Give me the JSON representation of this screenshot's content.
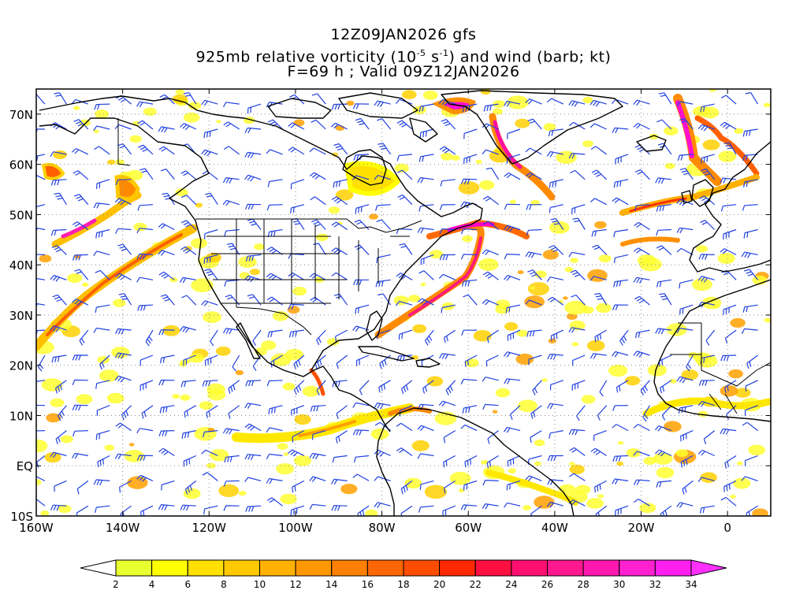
{
  "header": {
    "line1": "12Z09JAN2026 gfs",
    "line2_pre": "925mb relative vorticity (10",
    "line2_exp1": "-5",
    "line2_mid": " s",
    "line2_exp2": "-1",
    "line2_post": ") and wind (barb; kt)",
    "line3": "F=69 h ; Valid 09Z12JAN2026"
  },
  "map": {
    "lon_range": [
      -160,
      10
    ],
    "lat_range": [
      -10,
      75
    ],
    "lat_labels": [
      "70N",
      "60N",
      "50N",
      "40N",
      "30N",
      "20N",
      "10N",
      "EQ",
      "10S"
    ],
    "lat_values": [
      70,
      60,
      50,
      40,
      30,
      20,
      10,
      0,
      -10
    ],
    "lon_labels": [
      "160W",
      "140W",
      "120W",
      "100W",
      "80W",
      "60W",
      "40W",
      "20W",
      "0"
    ],
    "lon_values": [
      -160,
      -140,
      -120,
      -100,
      -80,
      -60,
      -40,
      -20,
      0
    ],
    "wind_barb_color": "#2040e0",
    "coastline_color": "#000000",
    "grid_color": "#888888"
  },
  "colorbar": {
    "labels": [
      "2",
      "4",
      "6",
      "8",
      "10",
      "12",
      "14",
      "16",
      "18",
      "20",
      "22",
      "24",
      "26",
      "28",
      "30",
      "32",
      "34"
    ],
    "colors": [
      "#e8ff30",
      "#ffff00",
      "#ffe000",
      "#ffc800",
      "#ffb000",
      "#ff9800",
      "#ff8000",
      "#ff6600",
      "#ff4c00",
      "#ff2800",
      "#ff1040",
      "#ff1070",
      "#ff1890",
      "#ff18b0",
      "#ff20d0",
      "#ff20ef"
    ]
  }
}
